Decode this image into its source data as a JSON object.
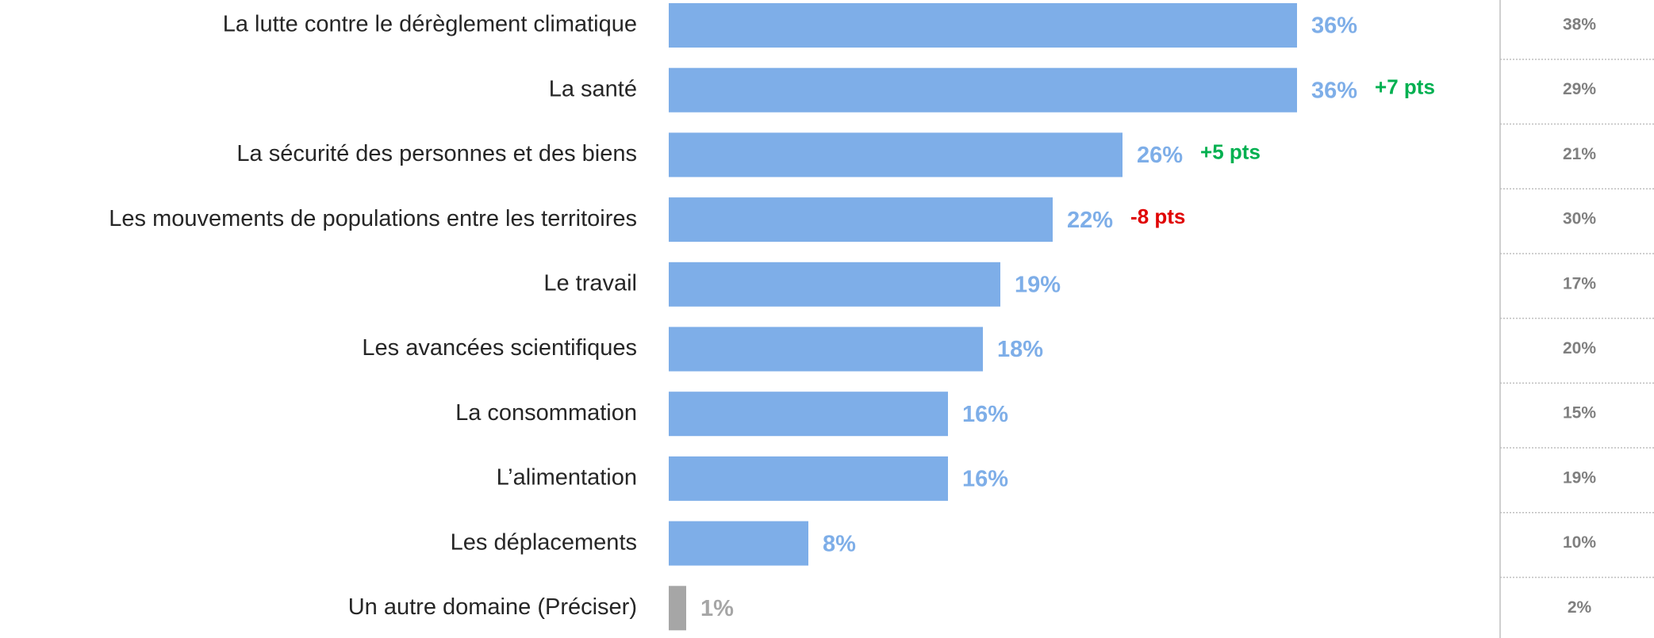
{
  "chart_data": {
    "type": "bar",
    "orientation": "horizontal",
    "categories": [
      "La lutte contre le dérèglement climatique",
      "La santé",
      "La sécurité des personnes et des biens",
      "Les mouvements de populations entre les territoires",
      "Le travail",
      "Les avancées scientifiques",
      "La consommation",
      "L’alimentation",
      "Les déplacements",
      "Un autre domaine (Préciser)"
    ],
    "values": [
      36,
      36,
      26,
      22,
      19,
      18,
      16,
      16,
      8,
      1
    ],
    "value_labels": [
      "36%",
      "36%",
      "26%",
      "22%",
      "19%",
      "18%",
      "16%",
      "16%",
      "8%",
      "1%"
    ],
    "colors": [
      "#7eaee8",
      "#7eaee8",
      "#7eaee8",
      "#7eaee8",
      "#7eaee8",
      "#7eaee8",
      "#7eaee8",
      "#7eaee8",
      "#7eaee8",
      "#a6a6a6"
    ],
    "changes": [
      null,
      "+7 pts",
      "+5 pts",
      "-8 pts",
      null,
      null,
      null,
      null,
      null,
      null
    ],
    "change_colors": [
      null,
      "#00b050",
      "#00b050",
      "#e00000",
      null,
      null,
      null,
      null,
      null,
      null
    ],
    "comparison": {
      "values": [
        38,
        29,
        21,
        30,
        17,
        20,
        15,
        19,
        10,
        2
      ],
      "value_labels": [
        "38%",
        "29%",
        "21%",
        "30%",
        "17%",
        "20%",
        "15%",
        "19%",
        "10%",
        "2%"
      ]
    }
  }
}
